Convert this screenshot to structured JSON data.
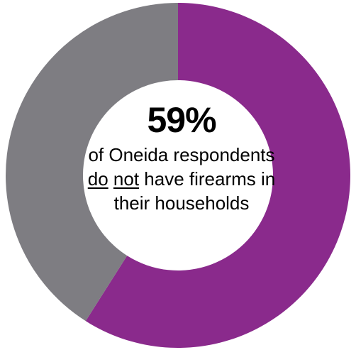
{
  "chart_data": {
    "type": "pie",
    "donut": true,
    "slices": [
      {
        "label": "do not have firearms",
        "value": 59,
        "color": "#8a2a8c"
      },
      {
        "label": "have firearms",
        "value": 41,
        "color": "#7e7d82"
      }
    ],
    "center": {
      "value_text": "59%",
      "caption_parts": [
        {
          "text": "of Oneida respondents ",
          "underline": false
        },
        {
          "text": "do",
          "underline": true
        },
        {
          "text": " ",
          "underline": false
        },
        {
          "text": "not",
          "underline": true
        },
        {
          "text": " have firearms in their households",
          "underline": false
        }
      ]
    }
  }
}
